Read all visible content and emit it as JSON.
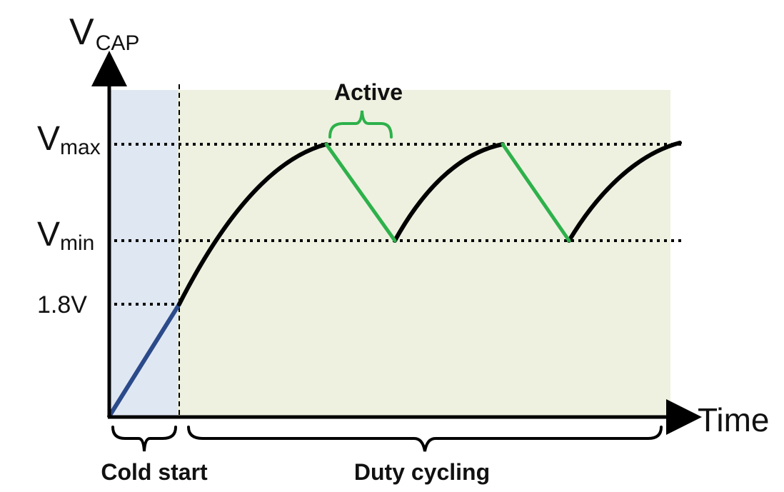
{
  "diagram": {
    "y_axis": {
      "symbol": "V",
      "subscript": "CAP"
    },
    "x_axis": {
      "label": "Time"
    },
    "levels": [
      {
        "symbol": "V",
        "subscript": "max",
        "value": ""
      },
      {
        "symbol": "V",
        "subscript": "min",
        "value": ""
      },
      {
        "symbol": "",
        "subscript": "",
        "value": "1.8V"
      }
    ],
    "annotations": {
      "active": "Active",
      "cold_start": "Cold start",
      "duty_cycling": "Duty cycling"
    },
    "colors": {
      "cold_start_region": "#dfe7f3",
      "duty_cycling_region": "#eef1e0",
      "active_segment": "#2eb04b",
      "cold_start_curve": "#2b4a8a",
      "charging_curve": "#000000"
    }
  }
}
